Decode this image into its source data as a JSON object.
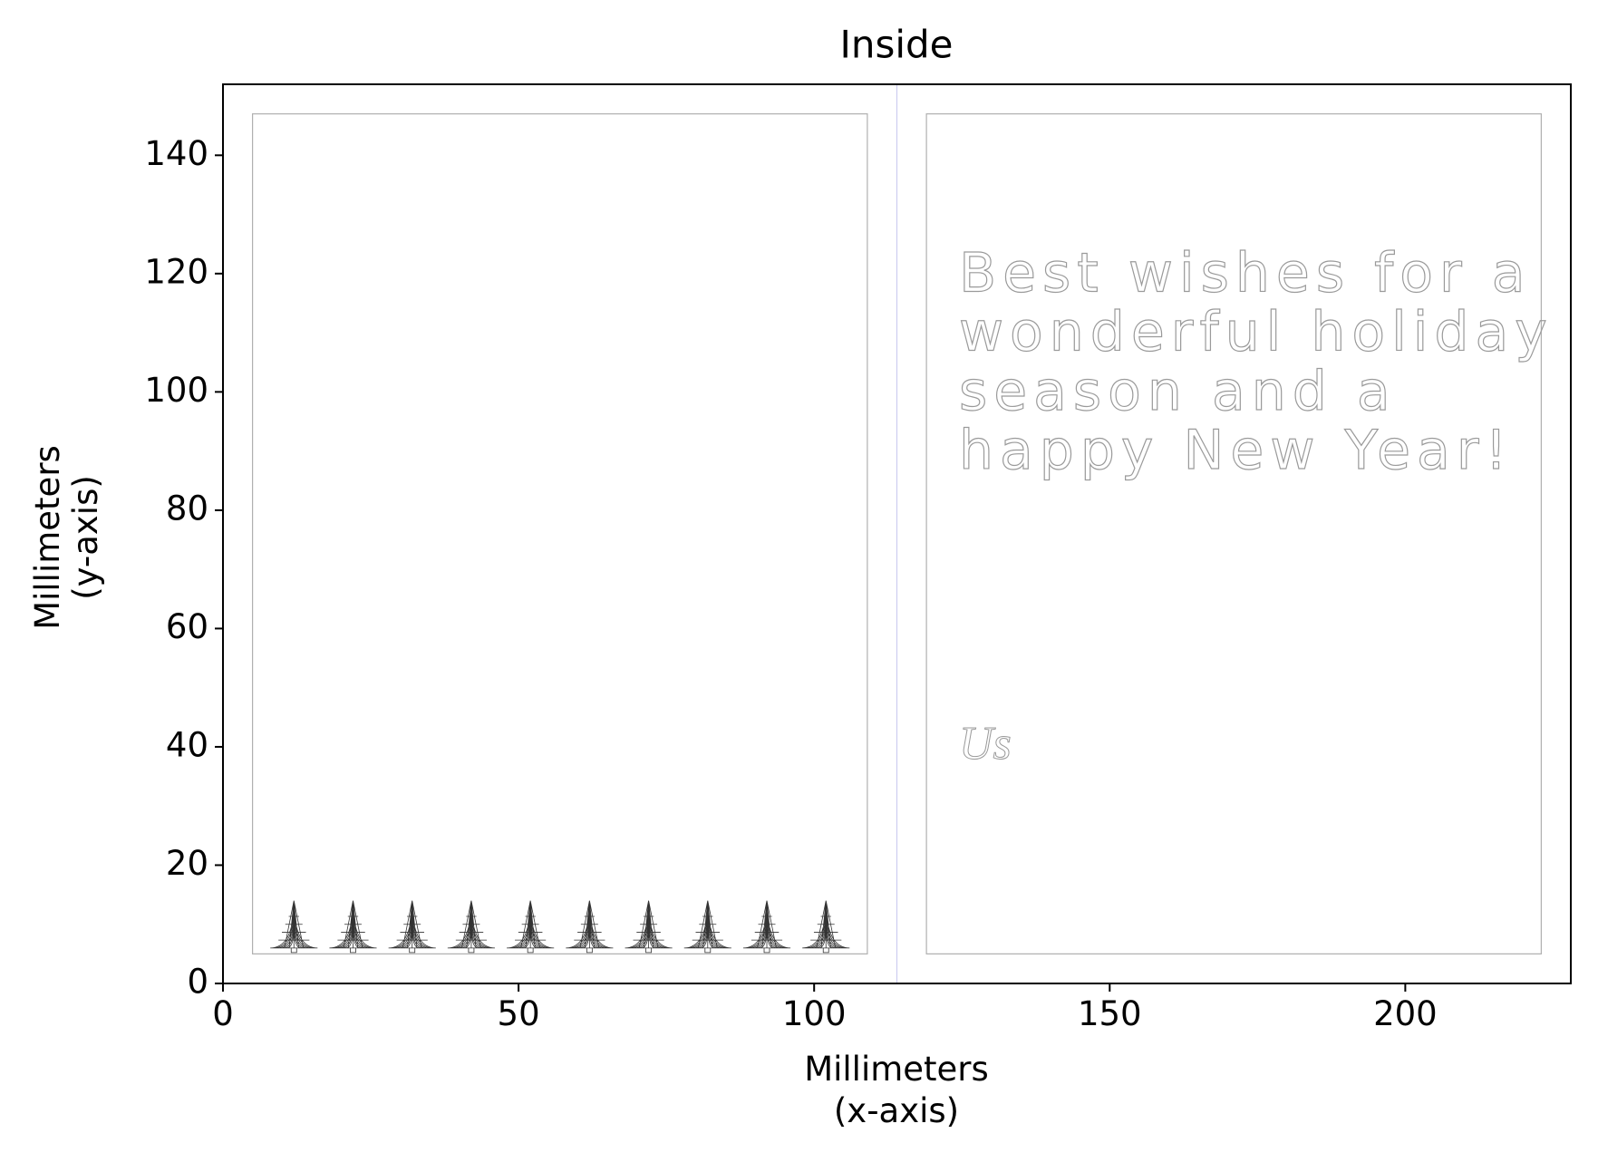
{
  "chart_data": {
    "type": "layout",
    "title": "Inside",
    "x_label": [
      "Millimeters",
      "(x-axis)"
    ],
    "y_label": [
      "Millimeters",
      "(y-axis)"
    ],
    "xlim": [
      0,
      228
    ],
    "ylim": [
      0,
      152
    ],
    "xticks": [
      0,
      50,
      100,
      150,
      200
    ],
    "yticks": [
      0,
      20,
      40,
      60,
      80,
      100,
      120,
      140
    ],
    "panels": [
      {
        "x": [
          5,
          109
        ],
        "y": [
          5,
          147
        ]
      },
      {
        "x": [
          119,
          223
        ],
        "y": [
          5,
          147
        ]
      }
    ],
    "fold_x": 114,
    "trees": {
      "x": [
        12,
        22,
        32,
        42,
        52,
        62,
        72,
        82,
        92,
        102
      ],
      "base": 6,
      "top": 14,
      "half_width": 4
    },
    "message": {
      "lines": [
        "Best wishes for a",
        "wonderful holiday",
        "season and a",
        "happy New Year!"
      ],
      "x": 124.5,
      "y": [
        117,
        107,
        97,
        87
      ]
    },
    "signature": {
      "text": "Us",
      "x": 124.5,
      "y": 38
    }
  }
}
